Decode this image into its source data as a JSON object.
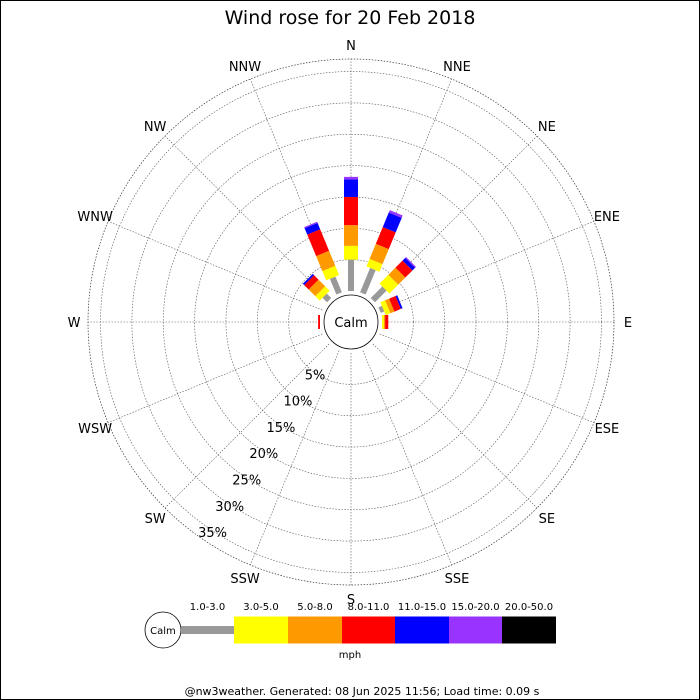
{
  "chart_data": {
    "type": "wind-rose",
    "title": "Wind rose for 20 Feb 2018",
    "center_label": "Calm",
    "directions": [
      "N",
      "NNE",
      "NE",
      "ENE",
      "E",
      "ESE",
      "SE",
      "SSE",
      "S",
      "SSW",
      "SW",
      "WSW",
      "W",
      "WNW",
      "NW",
      "NNW"
    ],
    "radial_ticks": [
      5,
      10,
      15,
      20,
      25,
      30,
      35
    ],
    "radial_tick_labels": [
      "5%",
      "10%",
      "15%",
      "20%",
      "25%",
      "30%",
      "35%"
    ],
    "radial_max": 37,
    "speed_bins": [
      "1.0-3.0",
      "3.0-5.0",
      "5.0-8.0",
      "8.0-11.0",
      "11.0-15.0",
      "15.0-20.0",
      "20.0-50.0"
    ],
    "bin_colors": [
      "#999999",
      "#ffff00",
      "#ff9900",
      "#ff0000",
      "#0000ff",
      "#9933ff",
      "#000000"
    ],
    "units": "mph",
    "series": [
      {
        "direction": "N",
        "values": [
          5.0,
          2.2,
          3.3,
          4.5,
          2.8,
          0.4,
          0
        ]
      },
      {
        "direction": "NNE",
        "values": [
          4.2,
          1.3,
          2.6,
          2.9,
          2.5,
          0.4,
          0
        ]
      },
      {
        "direction": "NE",
        "values": [
          2.6,
          2.0,
          1.6,
          1.6,
          0.6,
          0.2,
          0
        ]
      },
      {
        "direction": "ENE",
        "values": [
          0.6,
          0.8,
          0.7,
          1.1,
          0.3,
          0,
          0
        ]
      },
      {
        "direction": "E",
        "values": [
          0,
          0.3,
          0.2,
          0.5,
          0,
          0,
          0
        ]
      },
      {
        "direction": "ESE",
        "values": [
          0,
          0,
          0,
          0,
          0,
          0,
          0
        ]
      },
      {
        "direction": "SE",
        "values": [
          0,
          0,
          0,
          0,
          0,
          0,
          0
        ]
      },
      {
        "direction": "SSE",
        "values": [
          0,
          0,
          0,
          0,
          0,
          0,
          0
        ]
      },
      {
        "direction": "S",
        "values": [
          0,
          0,
          0,
          0,
          0,
          0,
          0
        ]
      },
      {
        "direction": "SSW",
        "values": [
          0,
          0,
          0,
          0,
          0,
          0,
          0
        ]
      },
      {
        "direction": "SW",
        "values": [
          0,
          0,
          0,
          0,
          0,
          0,
          0
        ]
      },
      {
        "direction": "WSW",
        "values": [
          0,
          0,
          0,
          0,
          0,
          0,
          0
        ]
      },
      {
        "direction": "W",
        "values": [
          0,
          0,
          0,
          0.3,
          0,
          0,
          0
        ]
      },
      {
        "direction": "WNW",
        "values": [
          0,
          0,
          0,
          0,
          0,
          0,
          0
        ]
      },
      {
        "direction": "NW",
        "values": [
          1.0,
          1.0,
          1.5,
          1.0,
          0.3,
          0,
          0
        ]
      },
      {
        "direction": "NNW",
        "values": [
          2.7,
          1.6,
          2.6,
          3.7,
          1.1,
          0.2,
          0
        ]
      }
    ],
    "grid": true,
    "legend_position": "bottom"
  },
  "footer": "@nw3weather. Generated: 08 Jun 2025 11:56; Load time: 0.09 s"
}
